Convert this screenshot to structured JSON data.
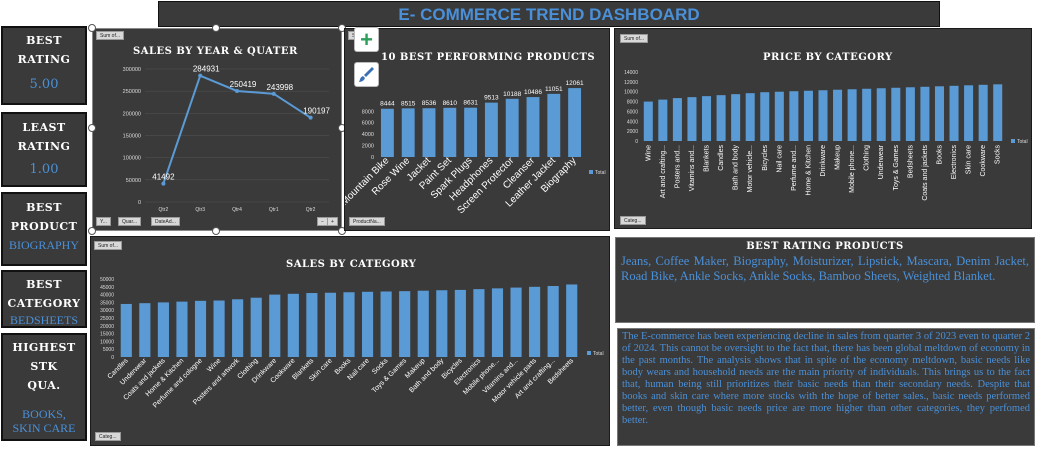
{
  "header": {
    "title": "E- COMMERCE TREND DASHBOARD"
  },
  "kpis": {
    "best_rating": {
      "title_l1": "BEST",
      "title_l2": "RATING",
      "value": "5.00"
    },
    "least_rating": {
      "title_l1": "LEAST",
      "title_l2": "RATING",
      "value": "1.00"
    },
    "best_product": {
      "title_l1": "BEST",
      "title_l2": "PRODUCT",
      "value": "BIOGRAPHY"
    },
    "best_category": {
      "title_l1": "BEST",
      "title_l2": "CATEGORY",
      "value": "BEDSHEETS"
    },
    "highest_stock": {
      "title_l1": "HIGHEST STK",
      "title_l2": "QUA.",
      "value_l1": "BOOKS,",
      "value_l2": "SKIN CARE"
    }
  },
  "controls": {
    "sum_of": "Sum of...",
    "year_filter": "Y...",
    "quarter_filter": "Quar...",
    "date_filter": "DateAd...",
    "minus": "−",
    "plus": "+",
    "product_filter": "ProductNa...",
    "category_filter": "Categ...",
    "category_filter2": "Categ..."
  },
  "legend_total": "Total",
  "best_rating_products": {
    "title": "BEST RATING PRODUCTS",
    "text": "Jeans, Coffee Maker, Biography, Moisturizer, Lipstick, Mascara, Denim Jacket, Road Bike, Ankle Socks, Ankle Socks, Bamboo Sheets, Weighted Blanket."
  },
  "summary": {
    "text": "The E-commerce has been experiencing decline in sales from quarter 3 of 2023 even to quarter 2 of 2024. This cannot be oversight to the fact that, there has been global meltdown of economy in the past months. The analysis shows that in spite of the economy meltdown, basic needs like body wears and household needs are the main priority of individuals. This brings us to the fact that, human being still prioritizes their basic needs than their secondary needs. Despite that books and skin care where more stocks with the hope of better sales., basic needs performed better, even though basic needs price are more higher than other categories, they perfomed better."
  },
  "chart_data": [
    {
      "id": "sales_by_quarter",
      "type": "line",
      "title": "SALES BY YEAR & QUATER",
      "x": [
        "Qtr2",
        "Qtr3",
        "Qtr4",
        "Qtr1",
        "Qtr2"
      ],
      "years": [
        {
          "label": "2023",
          "span": [
            0,
            2
          ]
        },
        {
          "label": "2024",
          "span": [
            3,
            4
          ]
        }
      ],
      "values": [
        41492,
        284931,
        250419,
        243998,
        190197
      ],
      "ylim": [
        0,
        300000
      ],
      "yticks": [
        "0",
        "50000",
        "100000",
        "150000",
        "200000",
        "250000",
        "300000"
      ],
      "color": "#5b9bd5"
    },
    {
      "id": "top_products",
      "type": "bar",
      "title": "10 BEST PERFORMING PRODUCTS",
      "categories": [
        "Mountain Bike",
        "Rose Wine",
        "Jacket",
        "Paint Set",
        "Spark Plugs",
        "Headphones",
        "Screen Protector",
        "Cleanser",
        "Leather Jacket",
        "Biography"
      ],
      "values": [
        8444,
        8515,
        8536,
        8610,
        8631,
        9513,
        10188,
        10486,
        11051,
        12061
      ],
      "ylim": [
        0,
        14000
      ],
      "yticks": [
        "0",
        "2000",
        "4000",
        "6000",
        "8000"
      ],
      "color": "#5b9bd5"
    },
    {
      "id": "price_by_category",
      "type": "bar",
      "title": "PRICE BY CATEGORY",
      "categories": [
        "Wine",
        "Art and crafting...",
        "Posters and...",
        "Vitamins and...",
        "Blankets",
        "Candles",
        "Bath and body",
        "Motor vehicle...",
        "Bicycles",
        "Nail care",
        "Perfume and...",
        "Home & Kitchen",
        "Drinkware",
        "Makeup",
        "Mobile phone...",
        "Clothing",
        "Underwear",
        "Toys & Games",
        "Bedsheets",
        "Coats and jackets",
        "Books",
        "Electronics",
        "Skin care",
        "Cookware",
        "Socks"
      ],
      "values": [
        8000,
        8400,
        8700,
        8900,
        9100,
        9300,
        9500,
        9700,
        9900,
        10000,
        10100,
        10200,
        10300,
        10400,
        10500,
        10600,
        10700,
        10800,
        10900,
        11000,
        11100,
        11200,
        11300,
        11400,
        11500
      ],
      "ylim": [
        0,
        14000
      ],
      "yticks": [
        "0",
        "2000",
        "4000",
        "6000",
        "8000",
        "10000",
        "12000",
        "14000"
      ],
      "color": "#5b9bd5"
    },
    {
      "id": "sales_by_category",
      "type": "bar",
      "title": "SALES BY CATEGORY",
      "categories": [
        "Candles",
        "Underwear",
        "Coats and jackets",
        "Home & Kitchen",
        "Perfume and cologne",
        "Wine",
        "Posters and artwork",
        "Clothing",
        "Drinkware",
        "Cookware",
        "Blankets",
        "Skin care",
        "Books",
        "Nail care",
        "Socks",
        "Toys & Games",
        "Makeup",
        "Bath and body",
        "Bicycles",
        "Electronics",
        "Mobile phone...",
        "Vitamins and...",
        "Motor vehicle parts",
        "Art and crafting...",
        "Bedsheets"
      ],
      "values": [
        34000,
        34500,
        35000,
        35500,
        36000,
        36200,
        37000,
        38000,
        40000,
        40500,
        41000,
        41200,
        41500,
        41800,
        42000,
        42200,
        42500,
        42800,
        43000,
        43500,
        44000,
        44500,
        45000,
        45500,
        46500
      ],
      "ylim": [
        0,
        50000
      ],
      "yticks": [
        "0",
        "5000",
        "10000",
        "15000",
        "20000",
        "25000",
        "30000",
        "35000",
        "40000",
        "45000",
        "50000"
      ],
      "color": "#5b9bd5"
    }
  ]
}
